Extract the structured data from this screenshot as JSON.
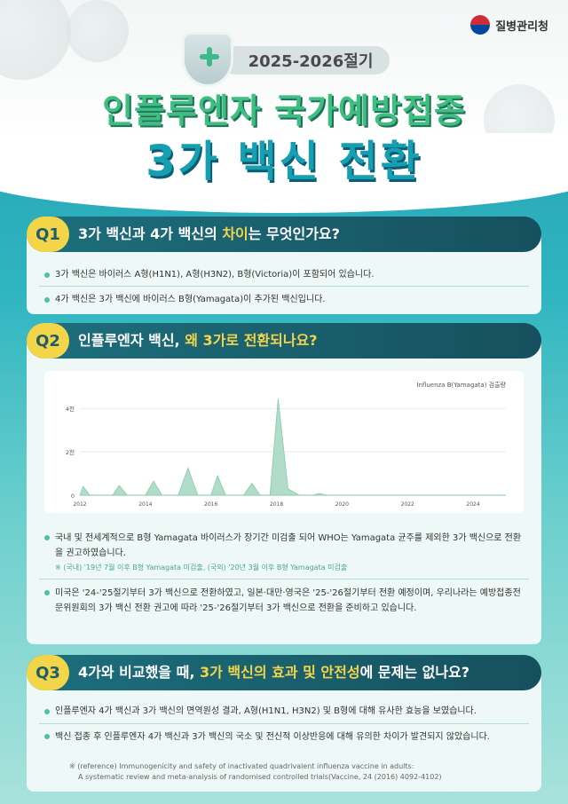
{
  "header": {
    "logo_text": "질병관리청",
    "season": "2025-2026절기",
    "title_line1": "인플루엔자 국가예방접종",
    "title_line2": "3가 백신 전환"
  },
  "q1": {
    "badge": "Q1",
    "title_part1": "3가 백신과 4가 백신의 ",
    "title_highlight": "차이",
    "title_part2": "는 무엇인가요?",
    "bullets": [
      "3가 백신은 바이러스 A형(H1N1), A형(H3N2), B형(Victoria)이 포함되어 있습니다.",
      "4가 백신은 3가 백신에 바이러스 B형(Yamagata)이 추가된 백신입니다."
    ]
  },
  "q2": {
    "badge": "Q2",
    "title_part1": "인플루엔자 백신, ",
    "title_highlight": "왜 3가로 전환되나요?",
    "bullet1": "국내 및 전세계적으로 B형 Yamagata 바이러스가 장기간 미검출 되어 WHO는 Yamagata 균주를 제외한 3가 백신으로 전환을 권고하였습니다.",
    "note1": "※ (국내) '19년 7월 이후 B형 Yamagata 미검출, (국외) '20년 3월 이후 B형 Yamagata 미검출",
    "bullet2": "미국은 '24-'25절기부터 3가 백신으로 전환하였고, 일본·대만·영국은 '25-'26절기부터 전환 예정이며, 우리나라는 예방접종전문위원회의 3가 백신 전환 권고에 따라 '25-'26절기부터 3가 백신으로 전환을 준비하고 있습니다."
  },
  "q3": {
    "badge": "Q3",
    "title_part1": "4가와 비교했을 때, ",
    "title_highlight": "3가 백신의 효과 및 안전성",
    "title_part2": "에 문제는 없나요?",
    "bullets": [
      "인플루엔자 4가 백신과 3가 백신의 면역원성 결과, A형(H1N1, H3N2) 및 B형에 대해 유사한 효능을 보였습니다.",
      "백신 접종 후 인플루엔자 4가 백신과 3가 백신의 국소 및 전신적 이상반응에 대해 유의한 차이가 발견되지 않았습니다."
    ],
    "reference_line1": "※ (reference) Immunogenicity and safety of inactivated quadrivalent influenza vaccine in adults:",
    "reference_line2": "A systematic review and meta-analysis of randomised controlled trials(Vaccine, 24 (2016) 4092-4102)"
  },
  "chart_data": {
    "type": "area",
    "title": "Influenza B(Yamagata) 검출량",
    "x_ticks": [
      "2012",
      "2014",
      "2016",
      "2018",
      "2020",
      "2022",
      "2024"
    ],
    "y_ticks": [
      "0",
      "2천",
      "4천"
    ],
    "ylim": [
      0,
      4500
    ],
    "xlim": [
      2012,
      2025
    ],
    "grid": true,
    "series": [
      {
        "values": [
          [
            2012.0,
            0
          ],
          [
            2012.1,
            400
          ],
          [
            2012.3,
            0
          ],
          [
            2013.0,
            0
          ],
          [
            2013.2,
            450
          ],
          [
            2013.45,
            0
          ],
          [
            2014.0,
            0
          ],
          [
            2014.25,
            650
          ],
          [
            2014.5,
            0
          ],
          [
            2015.0,
            0
          ],
          [
            2015.3,
            1250
          ],
          [
            2015.6,
            0
          ],
          [
            2016.0,
            0
          ],
          [
            2016.2,
            900
          ],
          [
            2016.45,
            0
          ],
          [
            2017.0,
            0
          ],
          [
            2017.25,
            550
          ],
          [
            2017.5,
            0
          ],
          [
            2017.8,
            0
          ],
          [
            2018.05,
            4450
          ],
          [
            2018.35,
            300
          ],
          [
            2018.7,
            0
          ],
          [
            2019.1,
            0
          ],
          [
            2019.3,
            80
          ],
          [
            2019.55,
            0
          ],
          [
            2025.0,
            0
          ]
        ]
      }
    ],
    "colors": {
      "fill": "#a8d9c4",
      "stroke": "#7cc5a6"
    }
  }
}
